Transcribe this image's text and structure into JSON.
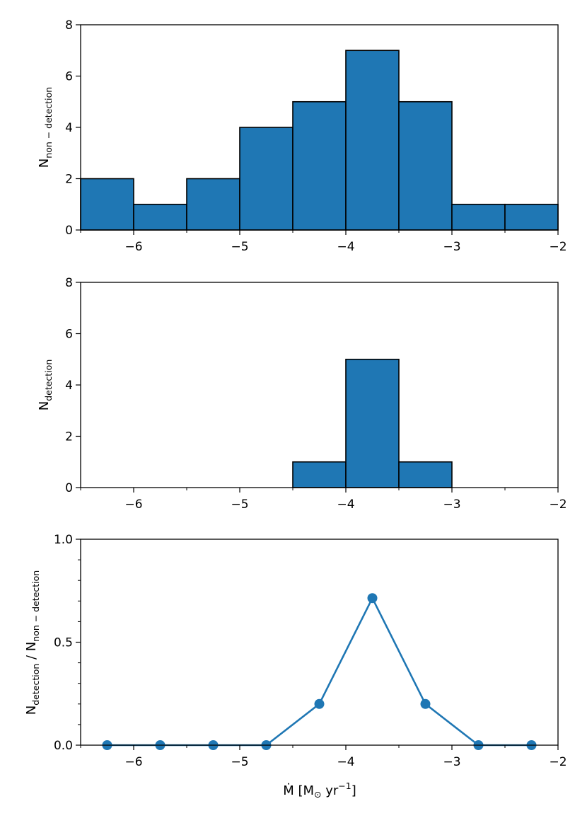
{
  "colors": {
    "bar_fill": "#1f77b4",
    "edge": "#000000",
    "line": "#1f77b4"
  },
  "chart_data": [
    {
      "type": "bar",
      "name": "non-detection histogram",
      "bin_edges": [
        -6.5,
        -6.0,
        -5.5,
        -5.0,
        -4.5,
        -4.0,
        -3.5,
        -3.0,
        -2.5,
        -2.0
      ],
      "values": [
        2,
        1,
        2,
        4,
        5,
        7,
        5,
        1,
        1
      ],
      "xlim": [
        -6.5,
        -2
      ],
      "ylim": [
        0,
        8
      ],
      "x_ticks": [
        -6,
        -5,
        -4,
        -3,
        -2
      ],
      "x_tick_labels": [
        "−6",
        "−5",
        "−4",
        "−3",
        "−2"
      ],
      "y_ticks": [
        0,
        2,
        4,
        6,
        8
      ],
      "y_tick_labels": [
        "0",
        "2",
        "4",
        "6",
        "8"
      ],
      "ylabel_main": "N",
      "ylabel_sub": "non − detection",
      "xlabel": ""
    },
    {
      "type": "bar",
      "name": "detection histogram",
      "bin_edges": [
        -6.5,
        -6.0,
        -5.5,
        -5.0,
        -4.5,
        -4.0,
        -3.5,
        -3.0,
        -2.5,
        -2.0
      ],
      "values": [
        0,
        0,
        0,
        0,
        1,
        5,
        1,
        0,
        0
      ],
      "xlim": [
        -6.5,
        -2
      ],
      "ylim": [
        0,
        8
      ],
      "x_ticks": [
        -6,
        -5,
        -4,
        -3,
        -2
      ],
      "x_tick_labels": [
        "−6",
        "−5",
        "−4",
        "−3",
        "−2"
      ],
      "y_ticks": [
        0,
        2,
        4,
        6,
        8
      ],
      "y_tick_labels": [
        "0",
        "2",
        "4",
        "6",
        "8"
      ],
      "ylabel_main": "N",
      "ylabel_sub": "detection",
      "xlabel": ""
    },
    {
      "type": "line",
      "name": "detection ratio",
      "x": [
        -6.25,
        -5.75,
        -5.25,
        -4.75,
        -4.25,
        -3.75,
        -3.25,
        -2.75,
        -2.25
      ],
      "y": [
        0,
        0,
        0,
        0,
        0.2,
        0.714,
        0.2,
        0,
        0
      ],
      "markers": true,
      "xlim": [
        -6.5,
        -2
      ],
      "ylim": [
        0,
        1.0
      ],
      "x_ticks": [
        -6,
        -5,
        -4,
        -3,
        -2
      ],
      "x_tick_labels": [
        "−6",
        "−5",
        "−4",
        "−3",
        "−2"
      ],
      "y_ticks": [
        0,
        0.5,
        1.0
      ],
      "y_tick_labels": [
        "0.0",
        "0.5",
        "1.0"
      ],
      "ylabel_parts": {
        "n1": "N",
        "sub1": "detection",
        "sep": " / N",
        "sub2": "non − detection"
      },
      "xlabel_parts": {
        "pre": "Ṁ [M",
        "sun": "⊙",
        "mid": " yr",
        "sup": "−1",
        "post": "]"
      }
    }
  ]
}
